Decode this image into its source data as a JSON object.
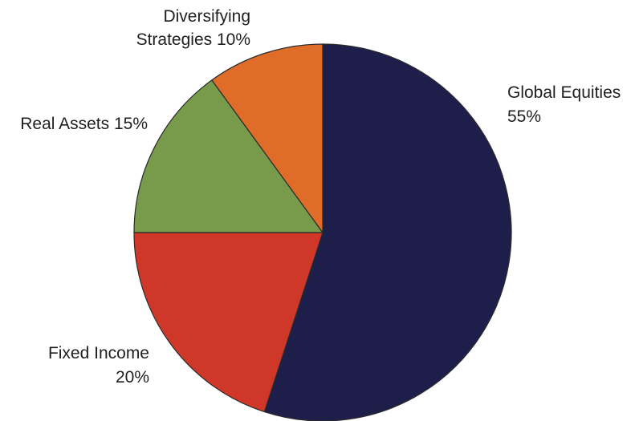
{
  "chart_data": {
    "type": "pie",
    "title": "",
    "start_angle_deg": 0,
    "direction": "clockwise",
    "slices": [
      {
        "label": "Global Equities",
        "value": 55,
        "display": [
          "Global Equities",
          "55%"
        ],
        "color": "#1e1e4b"
      },
      {
        "label": "Fixed Income",
        "value": 20,
        "display": [
          "Fixed Income",
          "20%"
        ],
        "color": "#cf3828"
      },
      {
        "label": "Real Assets",
        "value": 15,
        "display": [
          "Real Assets 15%"
        ],
        "color": "#779b4b"
      },
      {
        "label": "Diversifying Strategies",
        "value": 10,
        "display": [
          "Diversifying",
          "Strategies 10%"
        ],
        "color": "#e06c29"
      }
    ]
  }
}
